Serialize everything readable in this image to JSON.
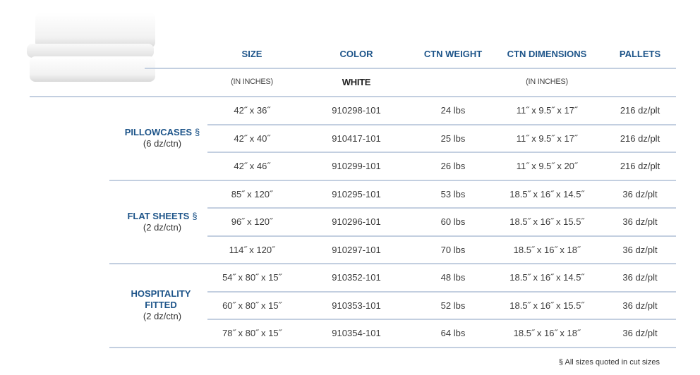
{
  "headers": {
    "size": "SIZE",
    "color": "COLOR",
    "weight": "CTN WEIGHT",
    "dims": "CTN DIMENSIONS",
    "pallets": "PALLETS"
  },
  "subheaders": {
    "size": "(IN INCHES)",
    "color": "WHITE",
    "dims": "(IN INCHES)"
  },
  "groups": [
    {
      "name": "PILLOWCASES",
      "mark": "§",
      "pack": "(6 dz/ctn)",
      "rows": [
        [
          "42˝ x 36˝",
          "910298-101",
          "24 lbs",
          "11˝ x 9.5˝ x 17˝",
          "216 dz/plt"
        ],
        [
          "42˝ x 40˝",
          "910417-101",
          "25 lbs",
          "11˝ x 9.5˝ x 17˝",
          "216 dz/plt"
        ],
        [
          "42˝ x 46˝",
          "910299-101",
          "26 lbs",
          "11˝ x 9.5˝ x 20˝",
          "216 dz/plt"
        ]
      ]
    },
    {
      "name": "FLAT SHEETS",
      "mark": "§",
      "pack": "(2 dz/ctn)",
      "rows": [
        [
          "85˝ x 120˝",
          "910295-101",
          "53 lbs",
          "18.5˝ x 16˝ x 14.5˝",
          "36 dz/plt"
        ],
        [
          "96˝ x 120˝",
          "910296-101",
          "60 lbs",
          "18.5˝ x 16˝ x 15.5˝",
          "36 dz/plt"
        ],
        [
          "114˝ x 120˝",
          "910297-101",
          "70 lbs",
          "18.5˝ x 16˝ x 18˝",
          "36 dz/plt"
        ]
      ]
    },
    {
      "name": "HOSPITALITY FITTED",
      "mark": "",
      "pack": "(2 dz/ctn)",
      "rows": [
        [
          "54˝ x 80˝ x 15˝",
          "910352-101",
          "48 lbs",
          "18.5˝ x 16˝ x 14.5˝",
          "36 dz/plt"
        ],
        [
          "60˝ x 80˝ x 15˝",
          "910353-101",
          "52 lbs",
          "18.5˝ x 16˝ x 15.5˝",
          "36 dz/plt"
        ],
        [
          "78˝ x 80˝ x 15˝",
          "910354-101",
          "64 lbs",
          "18.5˝ x 16˝ x 18˝",
          "36 dz/plt"
        ]
      ]
    }
  ],
  "footnote": "§ All sizes quoted in cut sizes",
  "colors": {
    "header": "#1d5489",
    "rule": "#c3cfe0"
  }
}
